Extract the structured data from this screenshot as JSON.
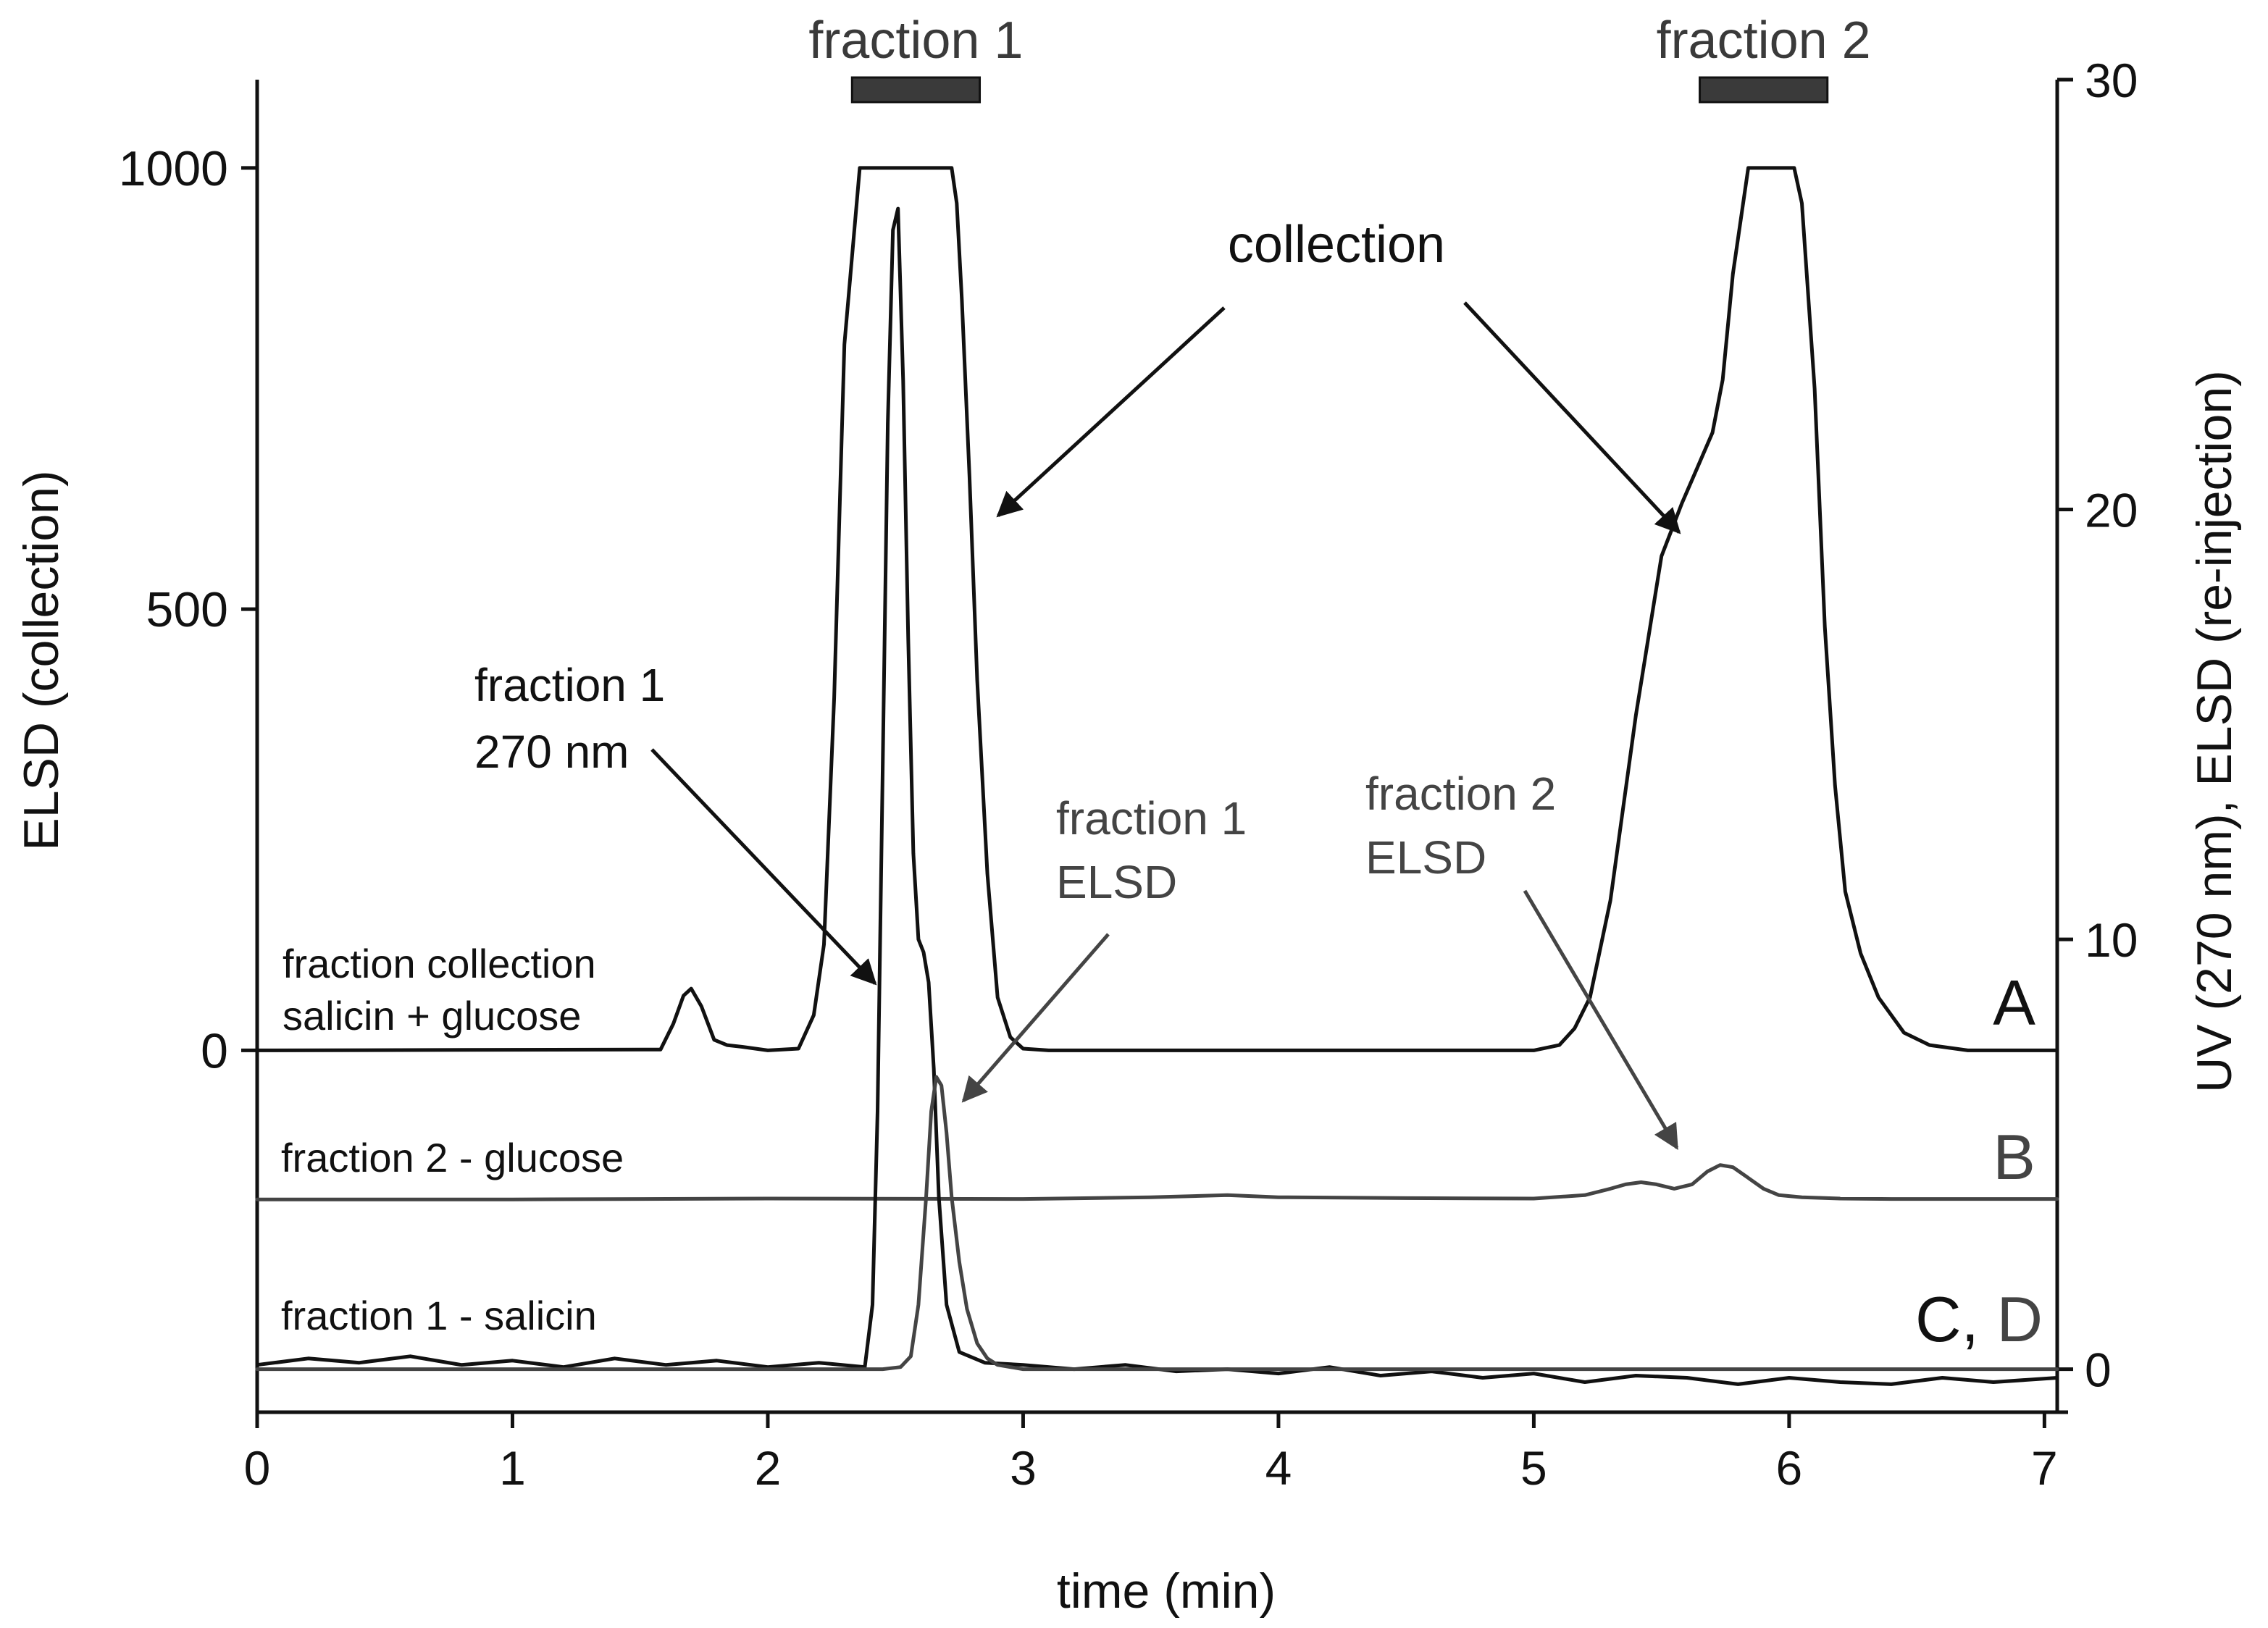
{
  "chart_data": {
    "type": "line",
    "title": "",
    "xlabel": "time (min)",
    "ylabel_left": "ELSD (collection)",
    "ylabel_right": "UV (270 nm), ELSD (re-injection)",
    "xlim": [
      0,
      7.05
    ],
    "ylim_left": [
      -410,
      1100
    ],
    "ylim_right": [
      -1,
      30
    ],
    "x_ticks": [
      0,
      1,
      2,
      3,
      4,
      5,
      6,
      7
    ],
    "y_left_ticks": [
      0,
      500,
      1000
    ],
    "y_right_ticks": [
      0,
      10,
      20,
      30
    ],
    "grid": false,
    "fraction_bars": [
      {
        "label": "fraction 1",
        "start": 2.33,
        "end": 2.83
      },
      {
        "label": "fraction 2",
        "start": 5.65,
        "end": 6.15
      }
    ],
    "trace_labels": {
      "A": "A",
      "B": "B",
      "CD_prefix": "C, ",
      "CD_suffix": "D"
    },
    "annotations": {
      "collection": "collection",
      "trace_a_line1": "fraction collection",
      "trace_a_line2": "salicin + glucose",
      "trace_b": "fraction 2 - glucose",
      "trace_cd": "fraction 1 - salicin",
      "f1_uv_line1": "fraction 1",
      "f1_uv_line2": "270 nm",
      "f1_elsd_line1": "fraction 1",
      "f1_elsd_line2": "ELSD",
      "f2_elsd_line1": "fraction 2",
      "f2_elsd_line2": "ELSD"
    },
    "series": [
      {
        "name": "A: fraction collection salicin + glucose (ELSD)",
        "axis": "left",
        "color": "#111111",
        "x": [
          0,
          1.58,
          1.63,
          1.67,
          1.7,
          1.74,
          1.79,
          1.84,
          1.9,
          2.0,
          2.12,
          2.18,
          2.22,
          2.26,
          2.3,
          2.36,
          2.42,
          2.48,
          2.55,
          2.62,
          2.69,
          2.72,
          2.74,
          2.76,
          2.79,
          2.82,
          2.86,
          2.9,
          2.95,
          3.0,
          3.1,
          5.0,
          5.1,
          5.16,
          5.22,
          5.3,
          5.4,
          5.5,
          5.58,
          5.64,
          5.7,
          5.74,
          5.78,
          5.84,
          5.9,
          5.97,
          6.02,
          6.05,
          6.1,
          6.14,
          6.18,
          6.22,
          6.28,
          6.35,
          6.45,
          6.55,
          6.7,
          7.05
        ],
        "y": [
          0,
          1,
          30,
          62,
          70,
          50,
          12,
          6,
          4,
          0,
          2,
          40,
          120,
          400,
          800,
          1000,
          1000,
          1000,
          1000,
          1000,
          1000,
          1000,
          960,
          850,
          650,
          420,
          200,
          60,
          15,
          2,
          0,
          0,
          6,
          25,
          60,
          170,
          380,
          560,
          620,
          660,
          700,
          760,
          880,
          1000,
          1000,
          1000,
          1000,
          960,
          750,
          480,
          300,
          180,
          110,
          60,
          20,
          6,
          0,
          0
        ]
      },
      {
        "name": "B: fraction 2 - glucose (ELSD re-injection)",
        "axis": "right",
        "color": "#444444",
        "x": [
          0,
          1.0,
          2.0,
          3.0,
          3.5,
          3.8,
          4.0,
          4.5,
          5.0,
          5.2,
          5.3,
          5.36,
          5.42,
          5.48,
          5.55,
          5.62,
          5.68,
          5.73,
          5.78,
          5.84,
          5.9,
          5.96,
          6.05,
          6.2,
          6.4,
          7.05
        ],
        "y": [
          3.95,
          3.95,
          3.97,
          3.96,
          4.0,
          4.05,
          4.0,
          3.98,
          3.97,
          4.05,
          4.2,
          4.3,
          4.35,
          4.3,
          4.2,
          4.3,
          4.6,
          4.75,
          4.7,
          4.45,
          4.2,
          4.05,
          4.0,
          3.97,
          3.96,
          3.96
        ]
      },
      {
        "name": "C: fraction 1 - salicin (UV 270 nm)",
        "axis": "right",
        "color": "#111111",
        "x": [
          0,
          0.2,
          0.4,
          0.6,
          0.8,
          1.0,
          1.2,
          1.4,
          1.6,
          1.8,
          2.0,
          2.2,
          2.38,
          2.41,
          2.43,
          2.45,
          2.47,
          2.49,
          2.51,
          2.53,
          2.55,
          2.57,
          2.59,
          2.61,
          2.63,
          2.65,
          2.67,
          2.7,
          2.75,
          2.85,
          3.0,
          3.2,
          3.4,
          3.6,
          3.8,
          4.0,
          4.2,
          4.4,
          4.6,
          4.8,
          5.0,
          5.2,
          5.4,
          5.6,
          5.8,
          6.0,
          6.2,
          6.4,
          6.6,
          6.8,
          7.05
        ],
        "y": [
          0.1,
          0.25,
          0.15,
          0.3,
          0.1,
          0.2,
          0.05,
          0.25,
          0.1,
          0.2,
          0.05,
          0.15,
          0.05,
          1.5,
          6,
          14,
          22,
          26.5,
          27,
          23,
          17,
          12,
          10,
          9.7,
          9,
          7,
          4,
          1.5,
          0.4,
          0.15,
          0.1,
          0.0,
          0.1,
          -0.05,
          0.0,
          -0.1,
          0.05,
          -0.15,
          -0.05,
          -0.2,
          -0.1,
          -0.3,
          -0.15,
          -0.2,
          -0.35,
          -0.2,
          -0.3,
          -0.35,
          -0.2,
          -0.3,
          -0.2
        ]
      },
      {
        "name": "D: fraction 1 - salicin (ELSD re-injection)",
        "axis": "right",
        "color": "#444444",
        "x": [
          0,
          2.45,
          2.52,
          2.56,
          2.59,
          2.62,
          2.64,
          2.66,
          2.68,
          2.7,
          2.72,
          2.75,
          2.78,
          2.82,
          2.86,
          2.9,
          3.0,
          7.05
        ],
        "y": [
          0,
          0,
          0.05,
          0.3,
          1.5,
          4.0,
          6.0,
          6.8,
          6.6,
          5.5,
          4.0,
          2.5,
          1.4,
          0.6,
          0.25,
          0.1,
          0.0,
          0.0
        ]
      }
    ]
  }
}
